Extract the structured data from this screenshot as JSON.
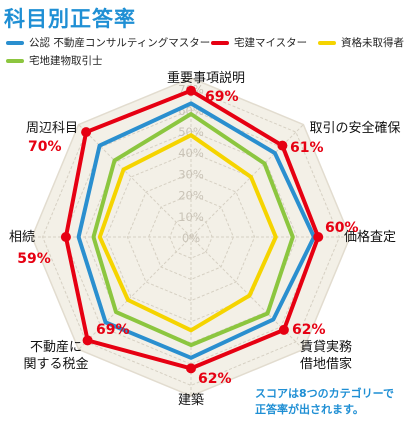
{
  "title": "科目別正答率",
  "legend": [
    {
      "label": "公認 不動産コンサルティングマスター",
      "color": "#2a8fcf"
    },
    {
      "label": "宅建マイスター",
      "color": "#e60012"
    },
    {
      "label": "資格未取得者",
      "color": "#f5d400"
    },
    {
      "label": "宅地建物取引士",
      "color": "#8cc63f"
    }
  ],
  "note": [
    "スコアは8つのカテゴリーで",
    "正答率が出されます。"
  ],
  "chart_data": {
    "type": "radar",
    "categories": [
      "重要事項説明",
      "取引の安全確保",
      "価格査定",
      "賃貸実務\n借地借家",
      "建築",
      "不動産に\n関する税金",
      "相続",
      "周辺科目"
    ],
    "tick_labels": [
      "0%",
      "10%",
      "20%",
      "30%",
      "40%",
      "50%",
      "60%",
      "70%"
    ],
    "rlim": [
      0,
      75
    ],
    "series": [
      {
        "name": "公認 不動産コンサルティングマスター",
        "color": "#2a8fcf",
        "values": [
          63,
          56,
          58,
          55,
          57,
          57,
          53,
          61
        ]
      },
      {
        "name": "宅建マイスター",
        "color": "#e60012",
        "values": [
          69,
          61,
          60,
          62,
          62,
          69,
          59,
          70
        ]
      },
      {
        "name": "資格未取得者",
        "color": "#f5d400",
        "values": [
          48,
          40,
          40,
          39,
          44,
          42,
          43,
          45
        ]
      },
      {
        "name": "宅地建物取引士",
        "color": "#8cc63f",
        "values": [
          58,
          49,
          48,
          51,
          51,
          50,
          46,
          51
        ]
      }
    ],
    "value_labels": [
      "69%",
      "61%",
      "60%",
      "62%",
      "62%",
      "69%",
      "59%",
      "70%"
    ]
  }
}
